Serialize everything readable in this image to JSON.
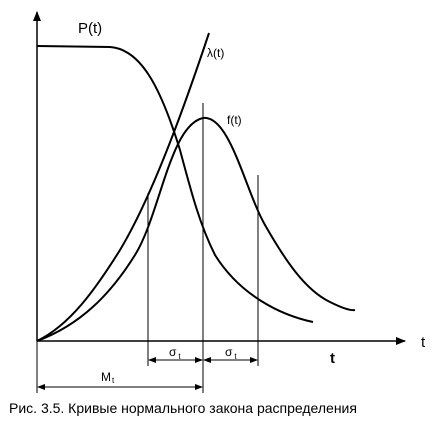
{
  "labels": {
    "p_curve": "P(t)",
    "lambda_curve": "λ(t)",
    "f_curve": "f(t)",
    "t_axis_bold": "t",
    "t_axis_light": "t",
    "sigma": "σ",
    "sigma_sub": "t",
    "mean_main": "M",
    "mean_sub": "t"
  },
  "caption": "Рис. 3.5. Кривые нормального закона распределения"
}
